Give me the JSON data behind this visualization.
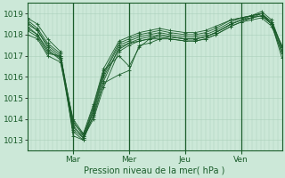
{
  "xlabel": "Pression niveau de la mer( hPa )",
  "bg_color": "#cce8d8",
  "plot_bg_color": "#cce8d8",
  "grid_color": "#aacfbb",
  "line_color": "#1a5c2a",
  "ylim": [
    1012.5,
    1019.5
  ],
  "yticks": [
    1013,
    1014,
    1015,
    1016,
    1017,
    1018,
    1019
  ],
  "day_labels": [
    "Mar",
    "Mer",
    "Jeu",
    "Ven"
  ],
  "day_positions": [
    0.18,
    0.4,
    0.62,
    0.84
  ],
  "series": [
    {
      "x": [
        0.0,
        0.04,
        0.08,
        0.13,
        0.18,
        0.22,
        0.26,
        0.3,
        0.36,
        0.4,
        0.44,
        0.48,
        0.52,
        0.56,
        0.62,
        0.66,
        0.7,
        0.74,
        0.8,
        0.84,
        0.88,
        0.92,
        0.96,
        1.0
      ],
      "y": [
        1018.8,
        1018.5,
        1017.8,
        1017.2,
        1013.2,
        1013.0,
        1014.2,
        1015.8,
        1017.4,
        1017.6,
        1017.7,
        1017.8,
        1017.8,
        1017.9,
        1017.8,
        1017.8,
        1017.9,
        1018.1,
        1018.5,
        1018.7,
        1018.8,
        1018.9,
        1018.5,
        1017.5
      ]
    },
    {
      "x": [
        0.0,
        0.04,
        0.08,
        0.13,
        0.18,
        0.22,
        0.26,
        0.3,
        0.36,
        0.4,
        0.44,
        0.48,
        0.52,
        0.56,
        0.62,
        0.66,
        0.7,
        0.74,
        0.8,
        0.84,
        0.88,
        0.92,
        0.96,
        1.0
      ],
      "y": [
        1018.5,
        1018.2,
        1017.5,
        1017.0,
        1013.5,
        1013.1,
        1014.0,
        1015.5,
        1017.2,
        1017.5,
        1017.7,
        1017.8,
        1017.9,
        1017.8,
        1017.7,
        1017.7,
        1017.8,
        1018.0,
        1018.4,
        1018.6,
        1018.7,
        1018.8,
        1018.4,
        1017.2
      ]
    },
    {
      "x": [
        0.0,
        0.04,
        0.08,
        0.13,
        0.18,
        0.22,
        0.26,
        0.3,
        0.36,
        0.4,
        0.44,
        0.48,
        0.52,
        0.56,
        0.62,
        0.66,
        0.7,
        0.74,
        0.8,
        0.84,
        0.88,
        0.92,
        0.96,
        1.0
      ],
      "y": [
        1018.7,
        1018.3,
        1017.6,
        1017.1,
        1013.8,
        1013.3,
        1014.3,
        1016.0,
        1017.3,
        1017.6,
        1017.8,
        1017.9,
        1018.0,
        1017.9,
        1017.8,
        1017.8,
        1017.9,
        1018.1,
        1018.5,
        1018.7,
        1018.9,
        1019.0,
        1018.6,
        1017.4
      ]
    },
    {
      "x": [
        0.0,
        0.04,
        0.08,
        0.13,
        0.18,
        0.22,
        0.26,
        0.3,
        0.36,
        0.4,
        0.44,
        0.48,
        0.52,
        0.56,
        0.62,
        0.66,
        0.7,
        0.74,
        0.8,
        0.84,
        0.88,
        0.92,
        0.96,
        1.0
      ],
      "y": [
        1018.6,
        1018.2,
        1017.4,
        1016.9,
        1013.6,
        1013.2,
        1014.1,
        1015.7,
        1016.1,
        1016.3,
        1017.5,
        1017.6,
        1017.8,
        1017.8,
        1017.7,
        1017.7,
        1017.8,
        1018.0,
        1018.4,
        1018.6,
        1018.8,
        1018.9,
        1018.5,
        1017.3
      ]
    },
    {
      "x": [
        0.0,
        0.04,
        0.08,
        0.13,
        0.18,
        0.22,
        0.26,
        0.3,
        0.36,
        0.4,
        0.44,
        0.48,
        0.52,
        0.56,
        0.62,
        0.66,
        0.7,
        0.74,
        0.8,
        0.84,
        0.88,
        0.92,
        0.96,
        1.0
      ],
      "y": [
        1018.4,
        1018.0,
        1017.3,
        1016.8,
        1013.4,
        1013.0,
        1014.4,
        1016.1,
        1017.5,
        1017.7,
        1017.9,
        1018.0,
        1018.1,
        1018.0,
        1017.9,
        1017.9,
        1018.0,
        1018.2,
        1018.6,
        1018.8,
        1018.9,
        1019.0,
        1018.5,
        1017.1
      ]
    },
    {
      "x": [
        0.0,
        0.04,
        0.08,
        0.13,
        0.18,
        0.22,
        0.26,
        0.3,
        0.36,
        0.4,
        0.44,
        0.48,
        0.52,
        0.56,
        0.62,
        0.66,
        0.7,
        0.74,
        0.8,
        0.84,
        0.88,
        0.92,
        0.96,
        1.0
      ],
      "y": [
        1018.3,
        1018.0,
        1017.2,
        1016.9,
        1013.7,
        1013.1,
        1014.5,
        1016.2,
        1017.6,
        1017.8,
        1018.0,
        1018.1,
        1018.2,
        1018.1,
        1018.0,
        1018.0,
        1018.1,
        1018.3,
        1018.7,
        1018.8,
        1018.9,
        1019.1,
        1018.7,
        1017.4
      ]
    },
    {
      "x": [
        0.0,
        0.04,
        0.08,
        0.13,
        0.18,
        0.22,
        0.26,
        0.3,
        0.36,
        0.4,
        0.44,
        0.48,
        0.52,
        0.56,
        0.62,
        0.66,
        0.7,
        0.74,
        0.8,
        0.84,
        0.88,
        0.92,
        0.96,
        1.0
      ],
      "y": [
        1018.2,
        1017.9,
        1017.1,
        1017.0,
        1013.9,
        1013.2,
        1014.6,
        1016.3,
        1017.0,
        1016.5,
        1017.4,
        1017.8,
        1018.0,
        1017.9,
        1017.8,
        1017.8,
        1017.9,
        1018.1,
        1018.5,
        1018.7,
        1018.8,
        1019.0,
        1018.6,
        1017.4
      ]
    },
    {
      "x": [
        0.0,
        0.04,
        0.08,
        0.13,
        0.18,
        0.22,
        0.26,
        0.3,
        0.36,
        0.4,
        0.44,
        0.48,
        0.52,
        0.56,
        0.62,
        0.66,
        0.7,
        0.74,
        0.8,
        0.84,
        0.88,
        0.92,
        0.96,
        1.0
      ],
      "y": [
        1018.0,
        1017.8,
        1017.0,
        1016.7,
        1014.0,
        1013.3,
        1014.7,
        1016.4,
        1017.7,
        1017.9,
        1018.1,
        1018.2,
        1018.3,
        1018.2,
        1018.1,
        1018.1,
        1018.2,
        1018.4,
        1018.7,
        1018.8,
        1018.9,
        1019.0,
        1018.5,
        1016.9
      ]
    }
  ]
}
